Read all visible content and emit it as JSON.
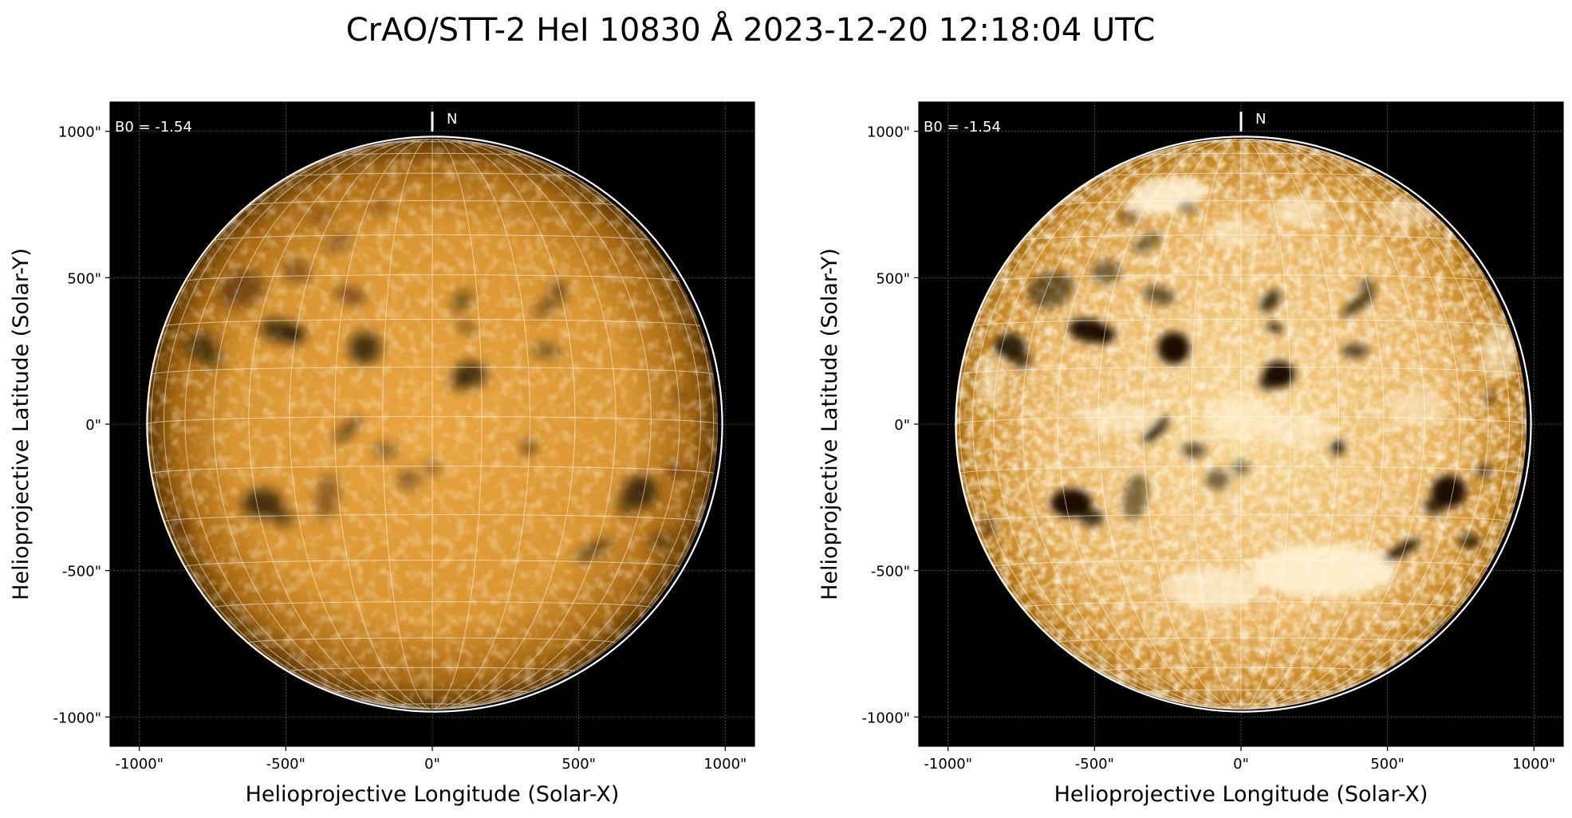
{
  "figure": {
    "title": "CrAO/STT-2 HeI 10830 Å 2023-12-20 12:18:04 UTC"
  },
  "panels": [
    {
      "id": "left",
      "variant": "standard",
      "b0_label": "B0 = -1.54",
      "north_label": "N",
      "xlabel": "Helioprojective Longitude (Solar-X)",
      "ylabel": "Helioprojective Latitude (Solar-Y)",
      "x_ticks": [
        "-1000\"",
        "-500\"",
        "0\"",
        "500\"",
        "1000\""
      ],
      "y_ticks": [
        "1000\"",
        "500\"",
        "0\"",
        "-500\"",
        "-1000\""
      ]
    },
    {
      "id": "right",
      "variant": "enhanced",
      "b0_label": "B0 = -1.54",
      "north_label": "N",
      "xlabel": "Helioprojective Longitude (Solar-X)",
      "ylabel": "Helioprojective Latitude (Solar-Y)",
      "x_ticks": [
        "-1000\"",
        "-500\"",
        "0\"",
        "500\"",
        "1000\""
      ],
      "y_ticks": [
        "1000\"",
        "500\"",
        "0\"",
        "-500\"",
        "-1000\""
      ]
    }
  ],
  "colors": {
    "background": "#000000",
    "disk_center": "#eaa640",
    "disk_limb": "#5c3600",
    "enhanced_center": "#f6d690",
    "enhanced_limb": "#a56a0c",
    "feature_dark": "#1b0d00",
    "grid_line": "#ffffff"
  },
  "coordinates": {
    "axis_range_arcsec": [
      -1100,
      1100
    ],
    "tick_values_arcsec": [
      -1000,
      -500,
      0,
      500,
      1000
    ],
    "solar_radius_arcsec": 975,
    "grid_spacing_deg": 10,
    "b0_deg": -1.54
  }
}
